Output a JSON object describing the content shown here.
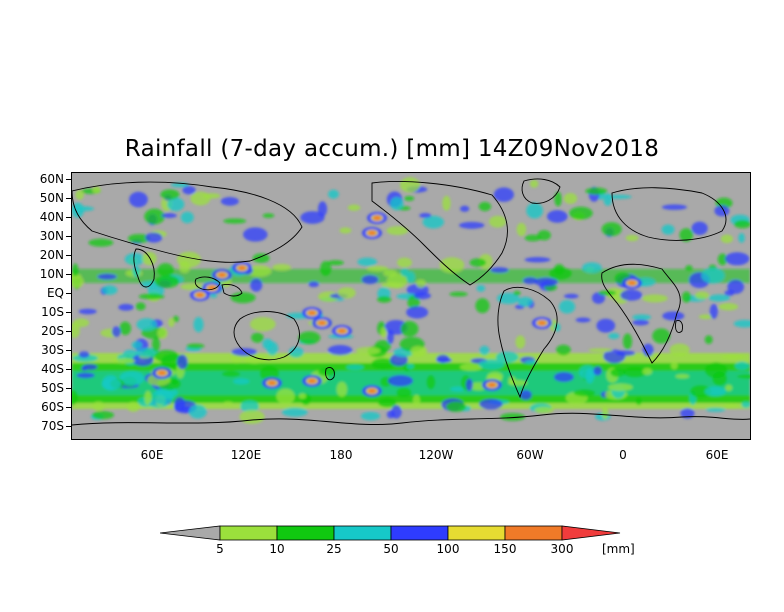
{
  "title": "Rainfall (7-day accum.) [mm] 14Z09Nov2018",
  "colors": {
    "land": "#a9a9a9",
    "c5": "#9be03c",
    "c10": "#10c810",
    "c25": "#16c8c8",
    "c50": "#2e3cff",
    "c100": "#e6dc32",
    "c150": "#f07a28",
    "c300": "#f03c3c"
  },
  "map": {
    "lat_labels": [
      "60N",
      "50N",
      "40N",
      "30N",
      "20N",
      "10N",
      "EQ",
      "10S",
      "20S",
      "30S",
      "40S",
      "50S",
      "60S",
      "70S"
    ],
    "lon_labels": [
      "60E",
      "120E",
      "180",
      "120W",
      "60W",
      "0",
      "60E"
    ]
  },
  "colorbar": {
    "labels": [
      "5",
      "10",
      "25",
      "50",
      "100",
      "150",
      "300"
    ],
    "unit": "[mm]"
  }
}
